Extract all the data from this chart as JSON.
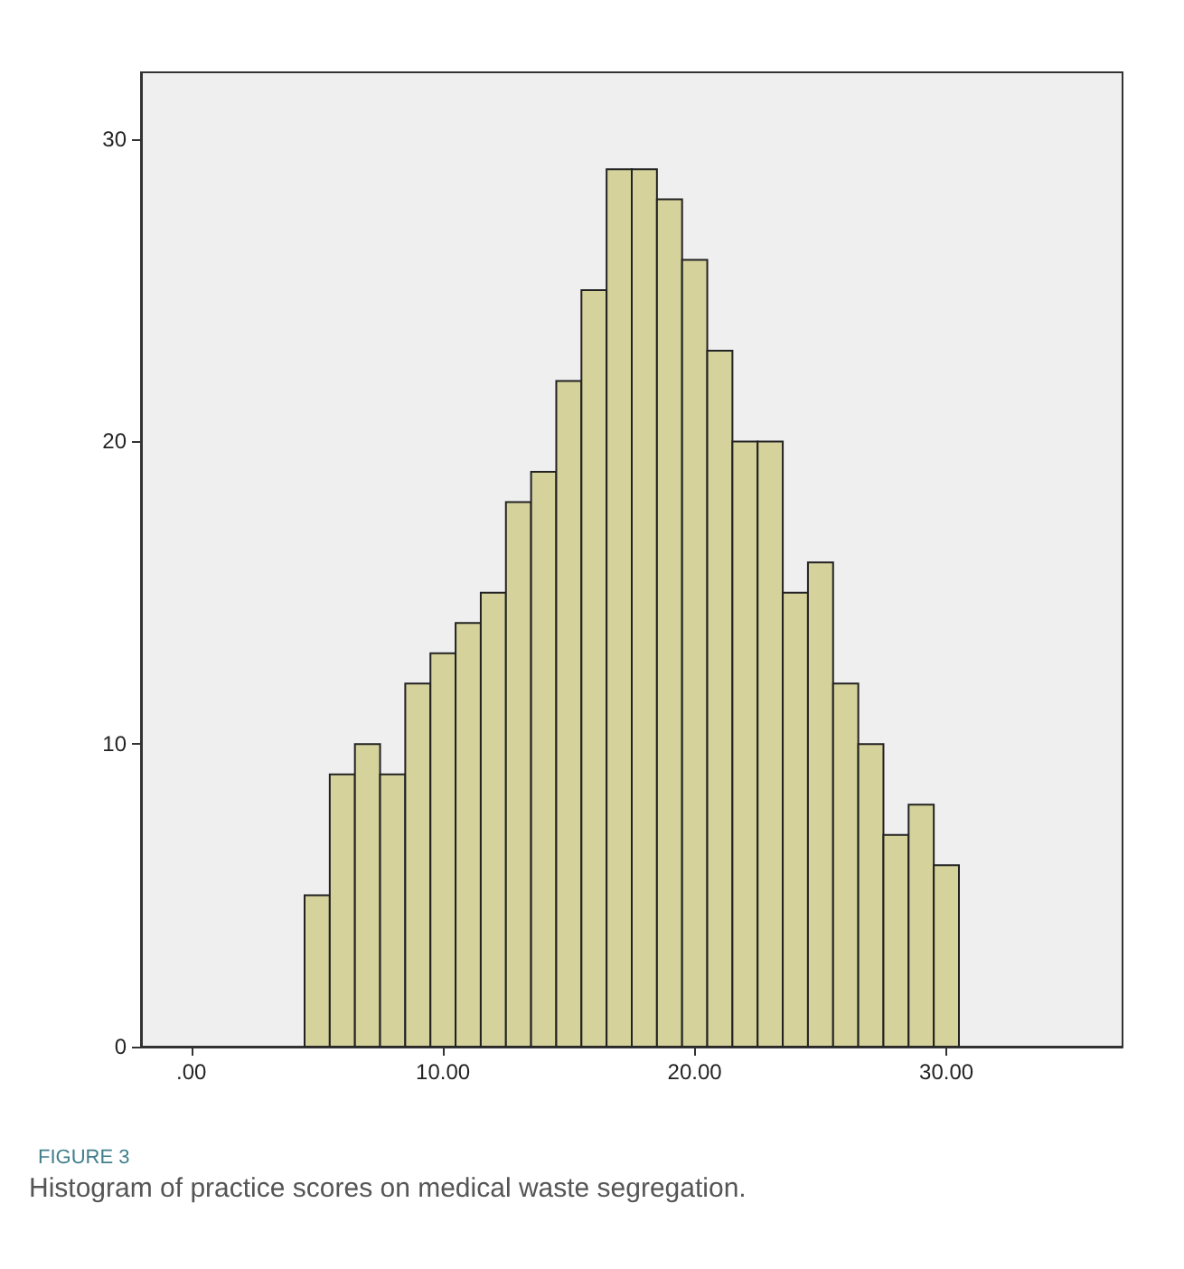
{
  "chart_data": {
    "type": "histogram",
    "title": "FIGURE 3",
    "annotations": [
      "Histogram of practice scores on medical waste segregation."
    ],
    "bins": [
      4.5,
      5.5,
      6.5,
      7.5,
      8.5,
      9.5,
      10.5,
      11.5,
      12.5,
      13.5,
      14.5,
      15.5,
      16.5,
      17.5,
      18.5,
      19.5,
      20.5,
      21.5,
      22.5,
      23.5,
      24.5,
      25.5,
      26.5,
      27.5,
      28.5,
      29.5,
      30.5
    ],
    "values": [
      5,
      9,
      10,
      9,
      12,
      13,
      14,
      15,
      18,
      19,
      22,
      25,
      29,
      29,
      28,
      26,
      23,
      20,
      20,
      15,
      16,
      12,
      10,
      7,
      8,
      6
    ],
    "color": "#d5d29b",
    "xlim": [
      -2,
      37
    ],
    "xticks": [
      {
        "value": 0,
        "label": ".00"
      },
      {
        "value": 10,
        "label": "10.00"
      },
      {
        "value": 20,
        "label": "20.00"
      },
      {
        "value": 30,
        "label": "30.00"
      }
    ],
    "ylim": [
      0,
      32.2
    ],
    "yticks": [
      0,
      10,
      20,
      30
    ],
    "grid": false
  }
}
